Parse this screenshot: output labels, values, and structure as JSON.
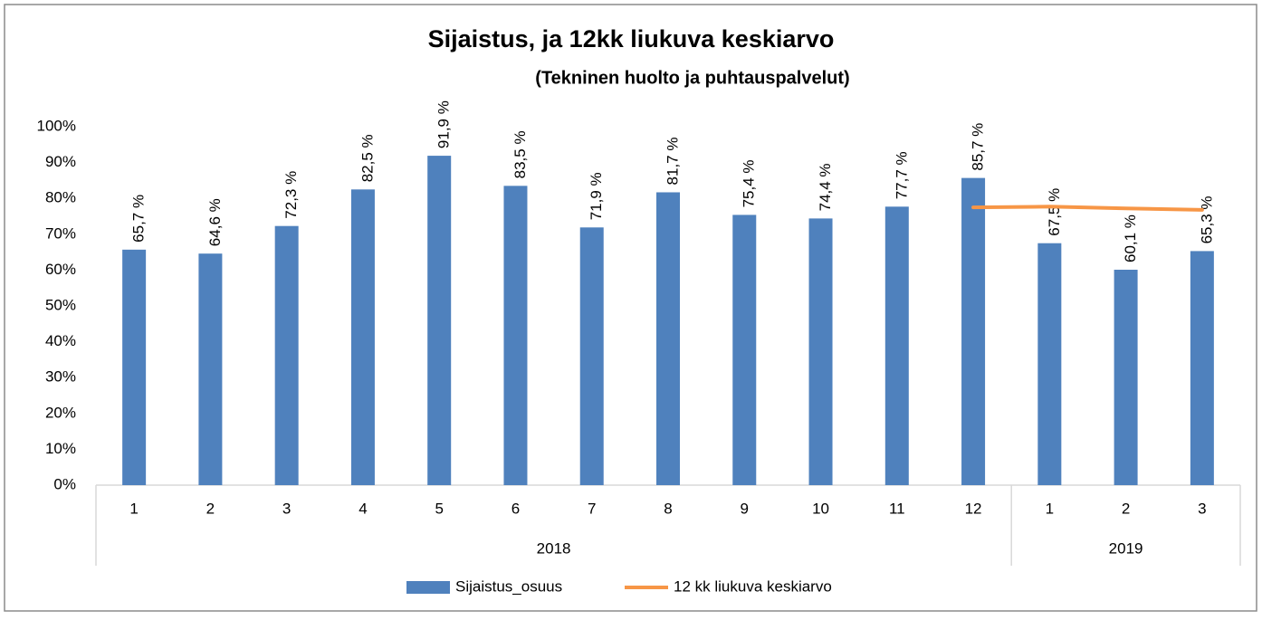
{
  "chart_data": {
    "type": "bar",
    "title": "Sijaistus, ja 12kk liukuva keskiarvo",
    "subtitle": "(Tekninen huolto ja puhtauspalvelut)",
    "groups": [
      {
        "label": "2018",
        "categories": [
          "1",
          "2",
          "3",
          "4",
          "5",
          "6",
          "7",
          "8",
          "9",
          "10",
          "11",
          "12"
        ]
      },
      {
        "label": "2019",
        "categories": [
          "1",
          "2",
          "3"
        ]
      }
    ],
    "series": [
      {
        "name": "Sijaistus_osuus",
        "type": "bar",
        "color": "#4f81bd",
        "values": [
          65.7,
          64.6,
          72.3,
          82.5,
          91.9,
          83.5,
          71.9,
          81.7,
          75.4,
          74.4,
          77.7,
          85.7,
          67.5,
          60.1,
          65.3
        ],
        "value_labels": [
          "65,7 %",
          "64,6 %",
          "72,3 %",
          "82,5 %",
          "91,9 %",
          "83,5 %",
          "71,9 %",
          "81,7 %",
          "75,4 %",
          "74,4 %",
          "77,7 %",
          "85,7 %",
          "67,5 %",
          "60,1 %",
          "65,3 %"
        ]
      },
      {
        "name": "12 kk liukuva keskiarvo",
        "type": "line",
        "color": "#f79646",
        "values": [
          null,
          null,
          null,
          null,
          null,
          null,
          null,
          null,
          null,
          null,
          null,
          77.5,
          77.7,
          77.2,
          76.8
        ]
      }
    ],
    "ylim": [
      0,
      100
    ],
    "yticks": [
      {
        "value": 0,
        "label": "0%"
      },
      {
        "value": 10,
        "label": "10%"
      },
      {
        "value": 20,
        "label": "20%"
      },
      {
        "value": 30,
        "label": "30%"
      },
      {
        "value": 40,
        "label": "40%"
      },
      {
        "value": 50,
        "label": "50%"
      },
      {
        "value": 60,
        "label": "60%"
      },
      {
        "value": 70,
        "label": "70%"
      },
      {
        "value": 80,
        "label": "80%"
      },
      {
        "value": 90,
        "label": "90%"
      },
      {
        "value": 100,
        "label": "100%"
      }
    ],
    "grid": false,
    "legend": "bottom"
  }
}
